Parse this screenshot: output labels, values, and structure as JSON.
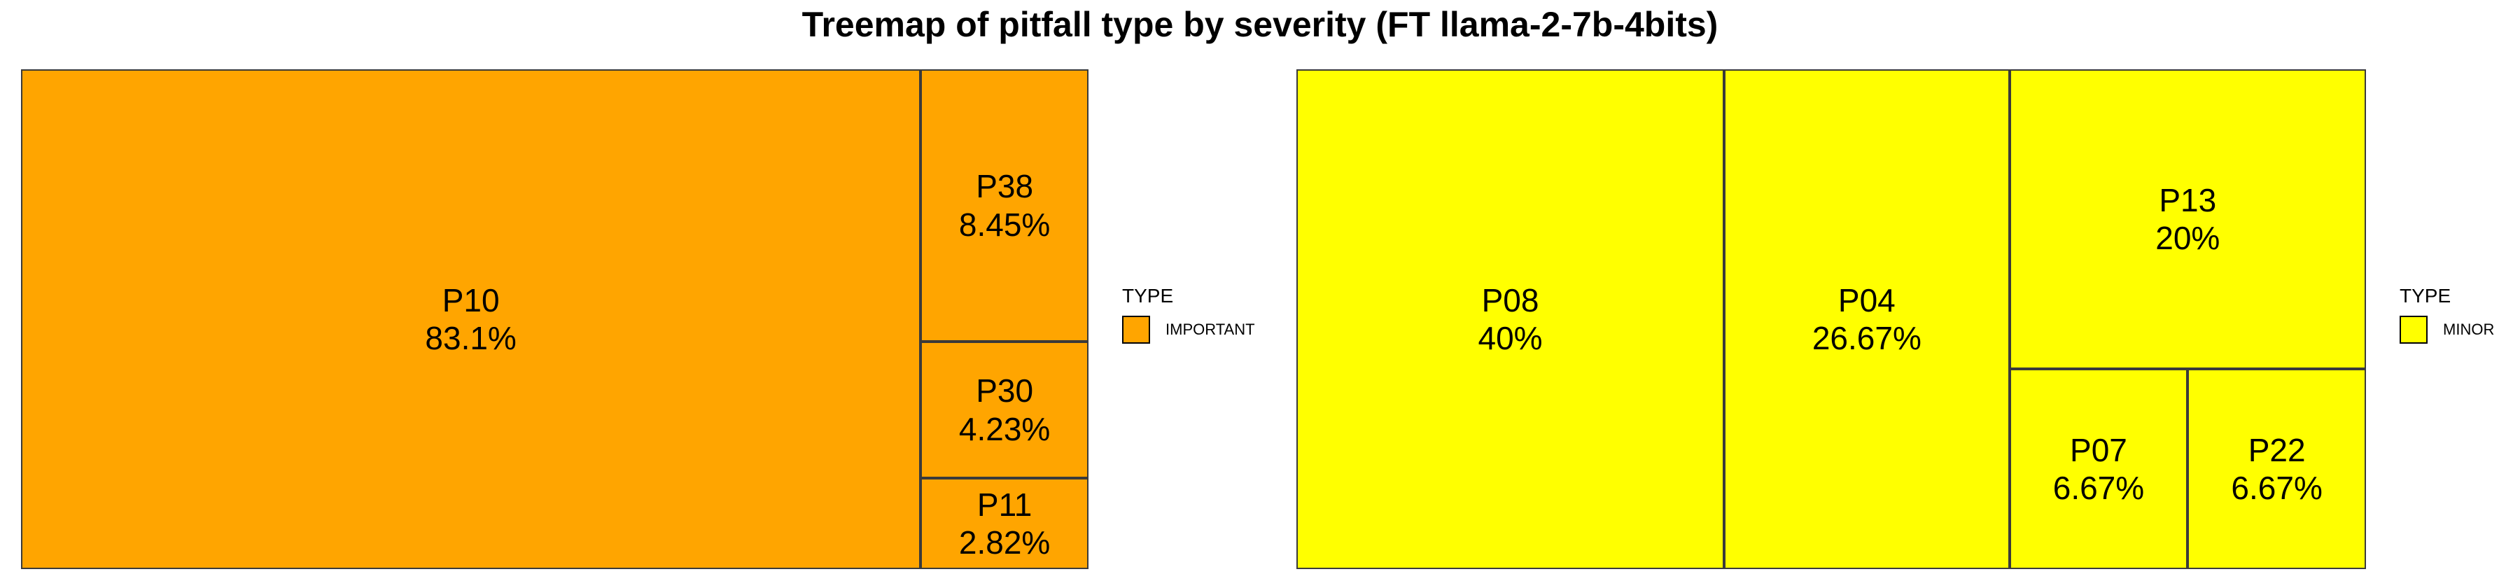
{
  "title": "Treemap of pitfall type by severity (FT llama-2-7b-4bits)",
  "chart_data": [
    {
      "type": "treemap",
      "legend": {
        "title": "TYPE",
        "label": "IMPORTANT",
        "color": "#FFA500"
      },
      "tiles": [
        {
          "name": "P10",
          "pct_label": "83.1%",
          "value": 83.1
        },
        {
          "name": "P38",
          "pct_label": "8.45%",
          "value": 8.45
        },
        {
          "name": "P30",
          "pct_label": "4.23%",
          "value": 4.23
        },
        {
          "name": "P11",
          "pct_label": "2.82%",
          "value": 2.82
        }
      ]
    },
    {
      "type": "treemap",
      "legend": {
        "title": "TYPE",
        "label": "MINOR",
        "color": "#FFFF00"
      },
      "tiles": [
        {
          "name": "P08",
          "pct_label": "40%",
          "value": 40
        },
        {
          "name": "P04",
          "pct_label": "26.67%",
          "value": 26.67
        },
        {
          "name": "P13",
          "pct_label": "20%",
          "value": 20
        },
        {
          "name": "P07",
          "pct_label": "6.67%",
          "value": 6.67
        },
        {
          "name": "P22",
          "pct_label": "6.67%",
          "value": 6.67
        }
      ]
    }
  ]
}
